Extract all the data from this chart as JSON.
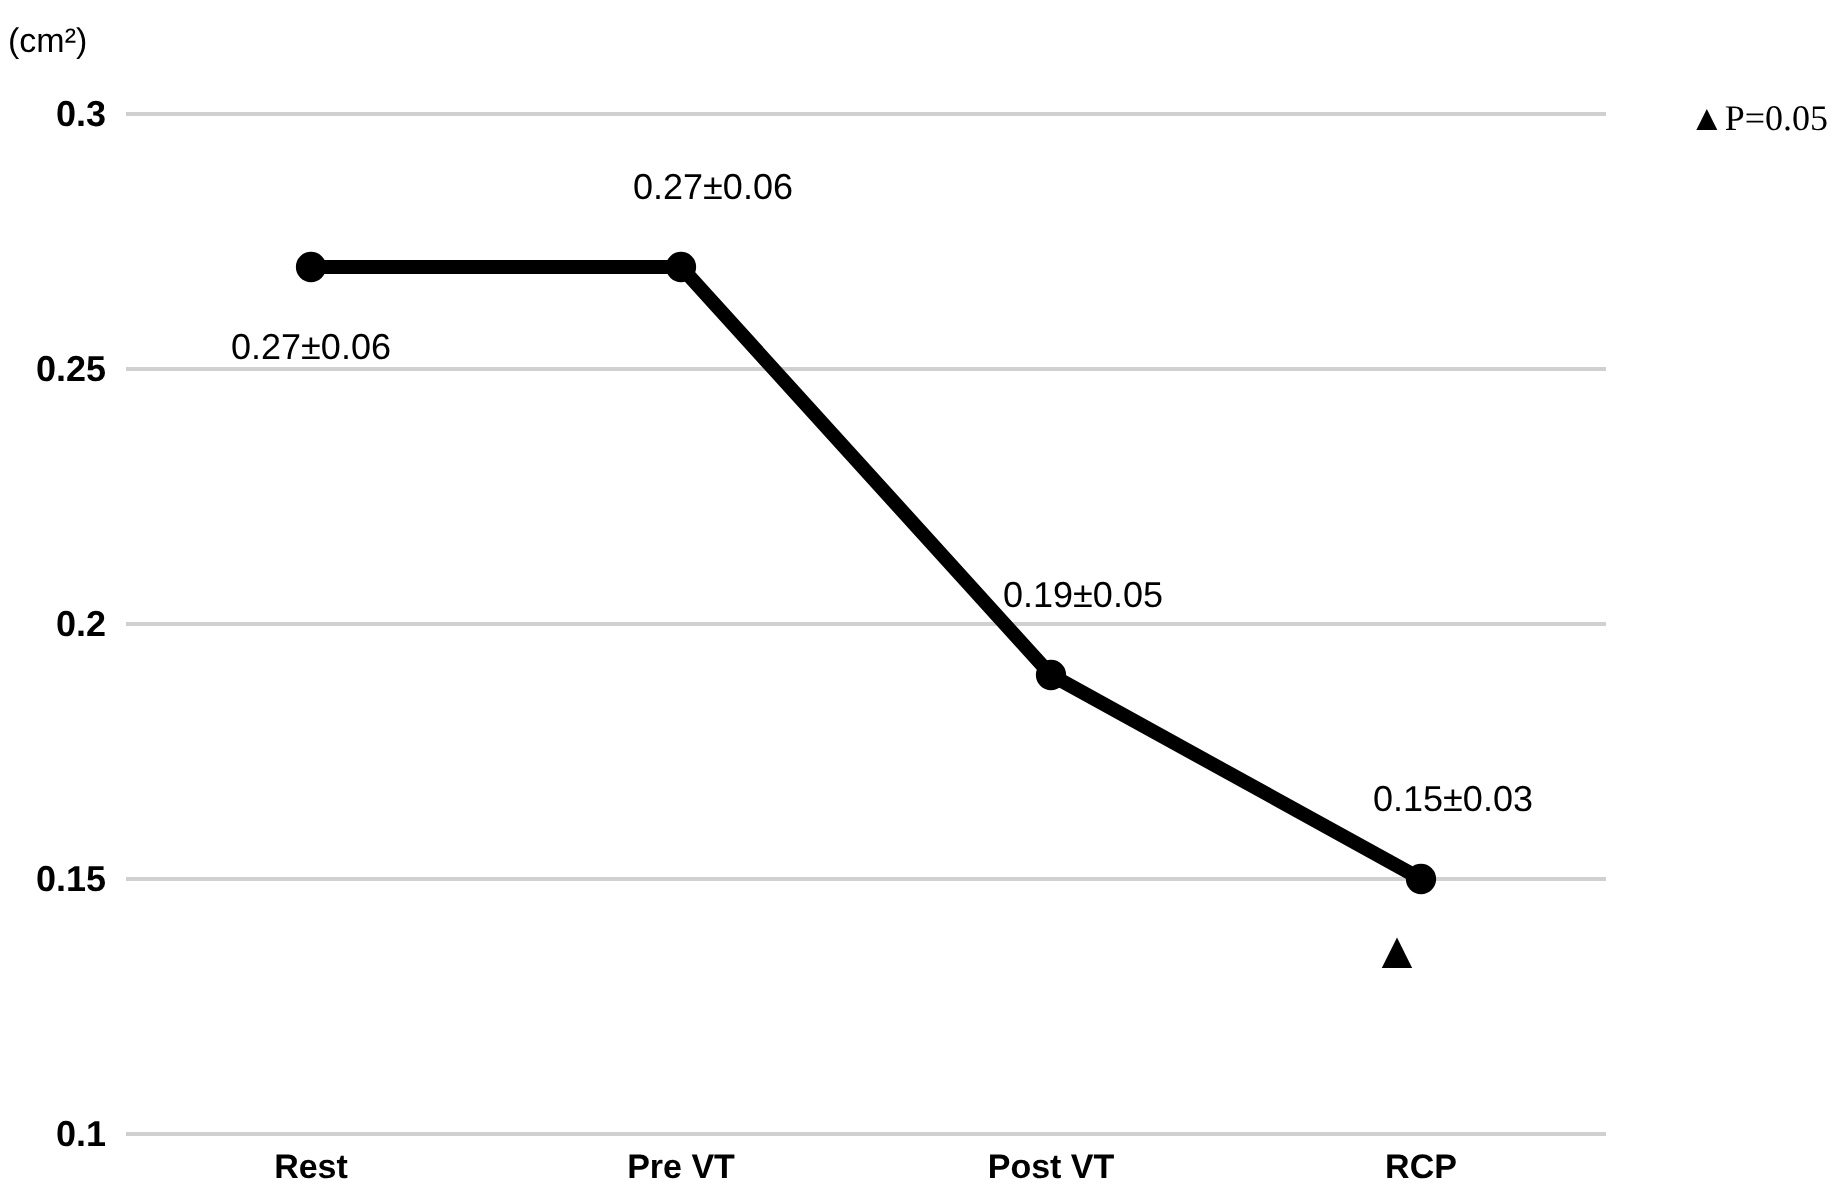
{
  "chart_data": {
    "type": "line",
    "ylabel": "(cm²)",
    "categories": [
      "Rest",
      "Pre VT",
      "Post VT",
      "RCP"
    ],
    "series": [
      {
        "color": "#000000",
        "values": [
          0.27,
          0.27,
          0.19,
          0.15
        ],
        "value_labels": [
          "0.27±0.06",
          "0.27±0.06",
          "0.19±0.05",
          "0.15±0.03"
        ]
      }
    ],
    "ylim": [
      0.1,
      0.3
    ],
    "yticks": [
      0.1,
      0.15,
      0.2,
      0.25,
      0.3
    ],
    "grid": "y",
    "marker": "circle",
    "line_style": "solid",
    "annotations": [
      "▲",
      "▲P=0.05"
    ]
  }
}
